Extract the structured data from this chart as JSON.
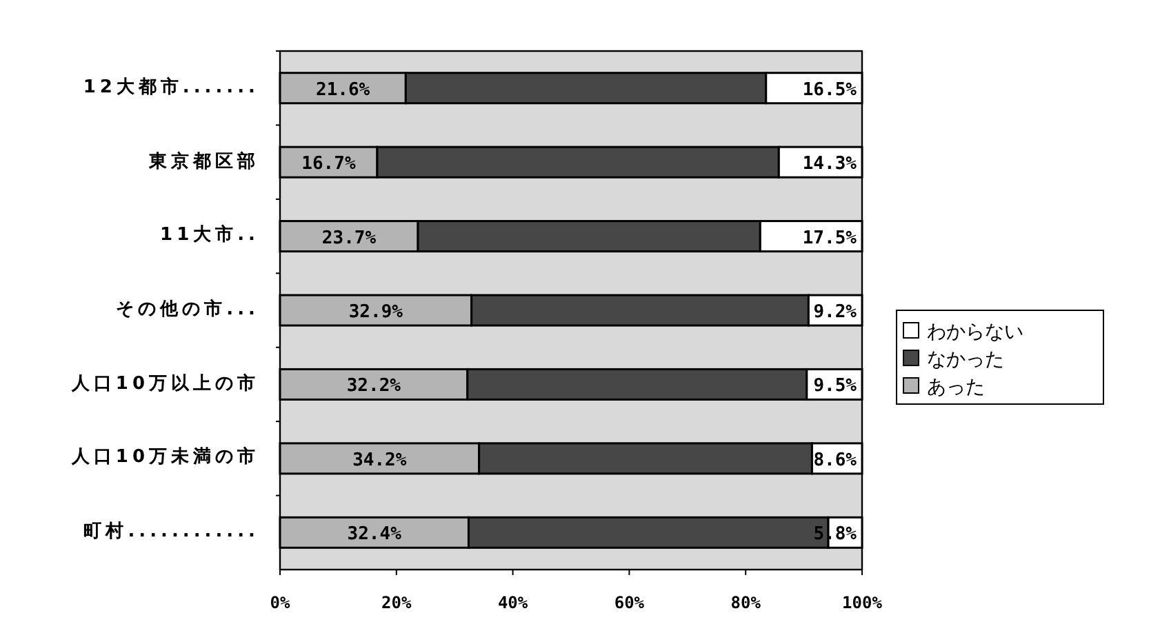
{
  "chart_data": {
    "type": "bar",
    "orientation": "horizontal",
    "stacked": true,
    "categories": [
      "12大都市.......",
      "東京都区部",
      "11大市..",
      "その他の市...",
      "人口10万以上の市",
      "人口10万未満の市",
      "町村............"
    ],
    "series": [
      {
        "name": "あった",
        "color": "#b4b4b4",
        "values": [
          21.6,
          16.7,
          23.7,
          32.9,
          32.2,
          34.2,
          32.4
        ],
        "value_labels": [
          "21.6%",
          "16.7%",
          "23.7%",
          "32.9%",
          "32.2%",
          "34.2%",
          "32.4%"
        ]
      },
      {
        "name": "なかった",
        "color": "#474747",
        "values": [
          61.9,
          69.0,
          58.8,
          57.9,
          58.3,
          57.2,
          61.8
        ]
      },
      {
        "name": "わからない",
        "color": "#ffffff",
        "values": [
          16.5,
          14.3,
          17.5,
          9.2,
          9.5,
          8.6,
          5.8
        ],
        "value_labels": [
          "16.5%",
          "14.3%",
          "17.5%",
          "9.2%",
          "9.5%",
          "8.6%",
          "5.8%"
        ]
      }
    ],
    "xlim": [
      0,
      100
    ],
    "xticks": [
      {
        "value": 0,
        "label": "0%"
      },
      {
        "value": 20,
        "label": "20%"
      },
      {
        "value": 40,
        "label": "40%"
      },
      {
        "value": 60,
        "label": "60%"
      },
      {
        "value": 80,
        "label": "80%"
      },
      {
        "value": 100,
        "label": "100%"
      }
    ],
    "grid": false,
    "legend": "right"
  }
}
